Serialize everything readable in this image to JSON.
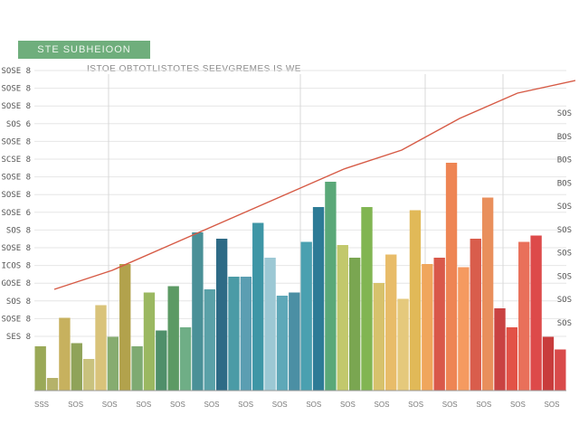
{
  "header": {
    "title": "STE SUBHEIOON",
    "subtitle": "ISTOE OBTOTLISTOTES SEEVGREMES IS WE"
  },
  "chart_data": {
    "type": "bar",
    "title": "STE SUBHEIOON",
    "subtitle": "ISTOE OBTOTLISTOTES SEEVGREMES IS WE",
    "ylim": [
      0,
      100
    ],
    "grid": true,
    "legend": "none",
    "y_tick_labels": [
      "SES 8",
      "SOSE 8",
      "SOS 8",
      "GOSE 8",
      "ICOS 8",
      "SOSE 8",
      "SOS 8",
      "SOSE 6",
      "SOSE 8",
      "SOSE 8",
      "SCSE 8",
      "SOSE 8",
      "SOS 6",
      "SOSE 8",
      "SOSE 8",
      "SOSE 8"
    ],
    "right_tick_labels": [
      "SOS",
      "BOS",
      "BOS",
      "BOS",
      "SOS",
      "SOS",
      "SOS",
      "SOS",
      "SOS",
      "SOS"
    ],
    "x_tick_labels": [
      "SSS",
      "SOS",
      "SOS",
      "SOS",
      "SOS",
      "SOS",
      "SOS",
      "SOS",
      "SOS",
      "SOS",
      "SOS",
      "SOS",
      "SOS",
      "SOS",
      "SOS",
      "SOS"
    ],
    "bars": [
      {
        "value": 14,
        "color": "#9aa957"
      },
      {
        "value": 4,
        "color": "#b5b26a"
      },
      {
        "value": 23,
        "color": "#c7b15e"
      },
      {
        "value": 15,
        "color": "#8fa359"
      },
      {
        "value": 10,
        "color": "#c9c27e"
      },
      {
        "value": 27,
        "color": "#d9c37a"
      },
      {
        "value": 17,
        "color": "#86ac70"
      },
      {
        "value": 40,
        "color": "#b2a24c"
      },
      {
        "value": 14,
        "color": "#7eaa72"
      },
      {
        "value": 31,
        "color": "#9bb861"
      },
      {
        "value": 19,
        "color": "#4f8f6a"
      },
      {
        "value": 33,
        "color": "#5c9a64"
      },
      {
        "value": 20,
        "color": "#6fae86"
      },
      {
        "value": 50,
        "color": "#4a9097"
      },
      {
        "value": 32,
        "color": "#5aa1a8"
      },
      {
        "value": 48,
        "color": "#2e6b86"
      },
      {
        "value": 36,
        "color": "#4b9ba6"
      },
      {
        "value": 36,
        "color": "#5b9eb2"
      },
      {
        "value": 53,
        "color": "#3e96a6"
      },
      {
        "value": 42,
        "color": "#9cc8d4"
      },
      {
        "value": 30,
        "color": "#5ea8b8"
      },
      {
        "value": 31,
        "color": "#4b8fa4"
      },
      {
        "value": 47,
        "color": "#4aa0b0"
      },
      {
        "value": 58,
        "color": "#2d7b96"
      },
      {
        "value": 66,
        "color": "#5aa878"
      },
      {
        "value": 46,
        "color": "#c2c86c"
      },
      {
        "value": 42,
        "color": "#7aa651"
      },
      {
        "value": 58,
        "color": "#81b552"
      },
      {
        "value": 34,
        "color": "#d7c26c"
      },
      {
        "value": 43,
        "color": "#e8bc69"
      },
      {
        "value": 29,
        "color": "#e5c97c"
      },
      {
        "value": 57,
        "color": "#e1b958"
      },
      {
        "value": 40,
        "color": "#f0a65c"
      },
      {
        "value": 42,
        "color": "#d9584a"
      },
      {
        "value": 72,
        "color": "#ee8554"
      },
      {
        "value": 39,
        "color": "#f59a60"
      },
      {
        "value": 48,
        "color": "#d95d4c"
      },
      {
        "value": 61,
        "color": "#e98f5c"
      },
      {
        "value": 26,
        "color": "#c94242"
      },
      {
        "value": 20,
        "color": "#e25247"
      },
      {
        "value": 47,
        "color": "#e9705a"
      },
      {
        "value": 49,
        "color": "#dd4a4a"
      },
      {
        "value": 17,
        "color": "#c83c3c"
      },
      {
        "value": 13,
        "color": "#d94a4a"
      }
    ],
    "trend_line": {
      "color": "#d65a45",
      "values": [
        32,
        38,
        46,
        54,
        62,
        70,
        76,
        86,
        94,
        98
      ]
    }
  }
}
